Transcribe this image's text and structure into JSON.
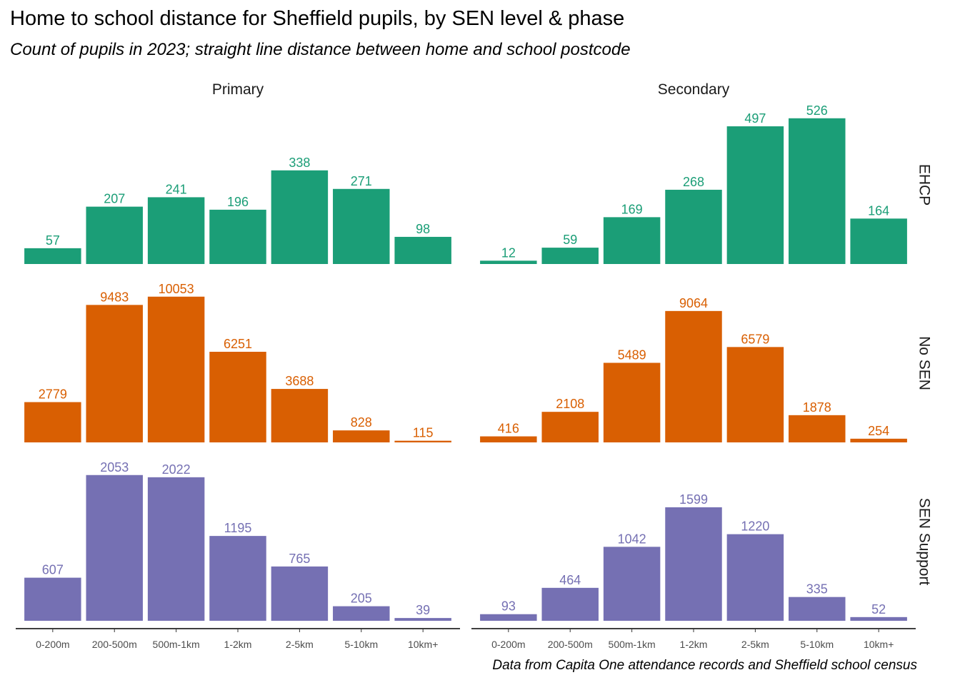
{
  "title": "Home to school distance for Sheffield pupils, by SEN level & phase",
  "subtitle": "Count of pupils in 2023; straight line distance between home and school postcode",
  "caption": "Data from Capita One attendance records and Sheffield school census",
  "chart_data": {
    "type": "bar",
    "facet_columns": [
      "Primary",
      "Secondary"
    ],
    "facet_rows": [
      "EHCP",
      "No SEN",
      "SEN Support"
    ],
    "categories": [
      "0-200m",
      "200-500m",
      "500m-1km",
      "1-2km",
      "2-5km",
      "5-10km",
      "10km+"
    ],
    "free_y_scale_per_row": true,
    "grid": false,
    "series": [
      {
        "row": "EHCP",
        "phase": "Primary",
        "color": "#1b9e77",
        "values": [
          57,
          207,
          241,
          196,
          338,
          271,
          98
        ]
      },
      {
        "row": "EHCP",
        "phase": "Secondary",
        "color": "#1b9e77",
        "values": [
          12,
          59,
          169,
          268,
          497,
          526,
          164
        ]
      },
      {
        "row": "No SEN",
        "phase": "Primary",
        "color": "#d95f02",
        "values": [
          2779,
          9483,
          10053,
          6251,
          3688,
          828,
          115
        ]
      },
      {
        "row": "No SEN",
        "phase": "Secondary",
        "color": "#d95f02",
        "values": [
          416,
          2108,
          5489,
          9064,
          6579,
          1878,
          254
        ]
      },
      {
        "row": "SEN Support",
        "phase": "Primary",
        "color": "#7570b3",
        "values": [
          607,
          2053,
          2022,
          1195,
          765,
          205,
          39
        ]
      },
      {
        "row": "SEN Support",
        "phase": "Secondary",
        "color": "#7570b3",
        "values": [
          93,
          464,
          1042,
          1599,
          1220,
          335,
          52
        ]
      }
    ]
  }
}
